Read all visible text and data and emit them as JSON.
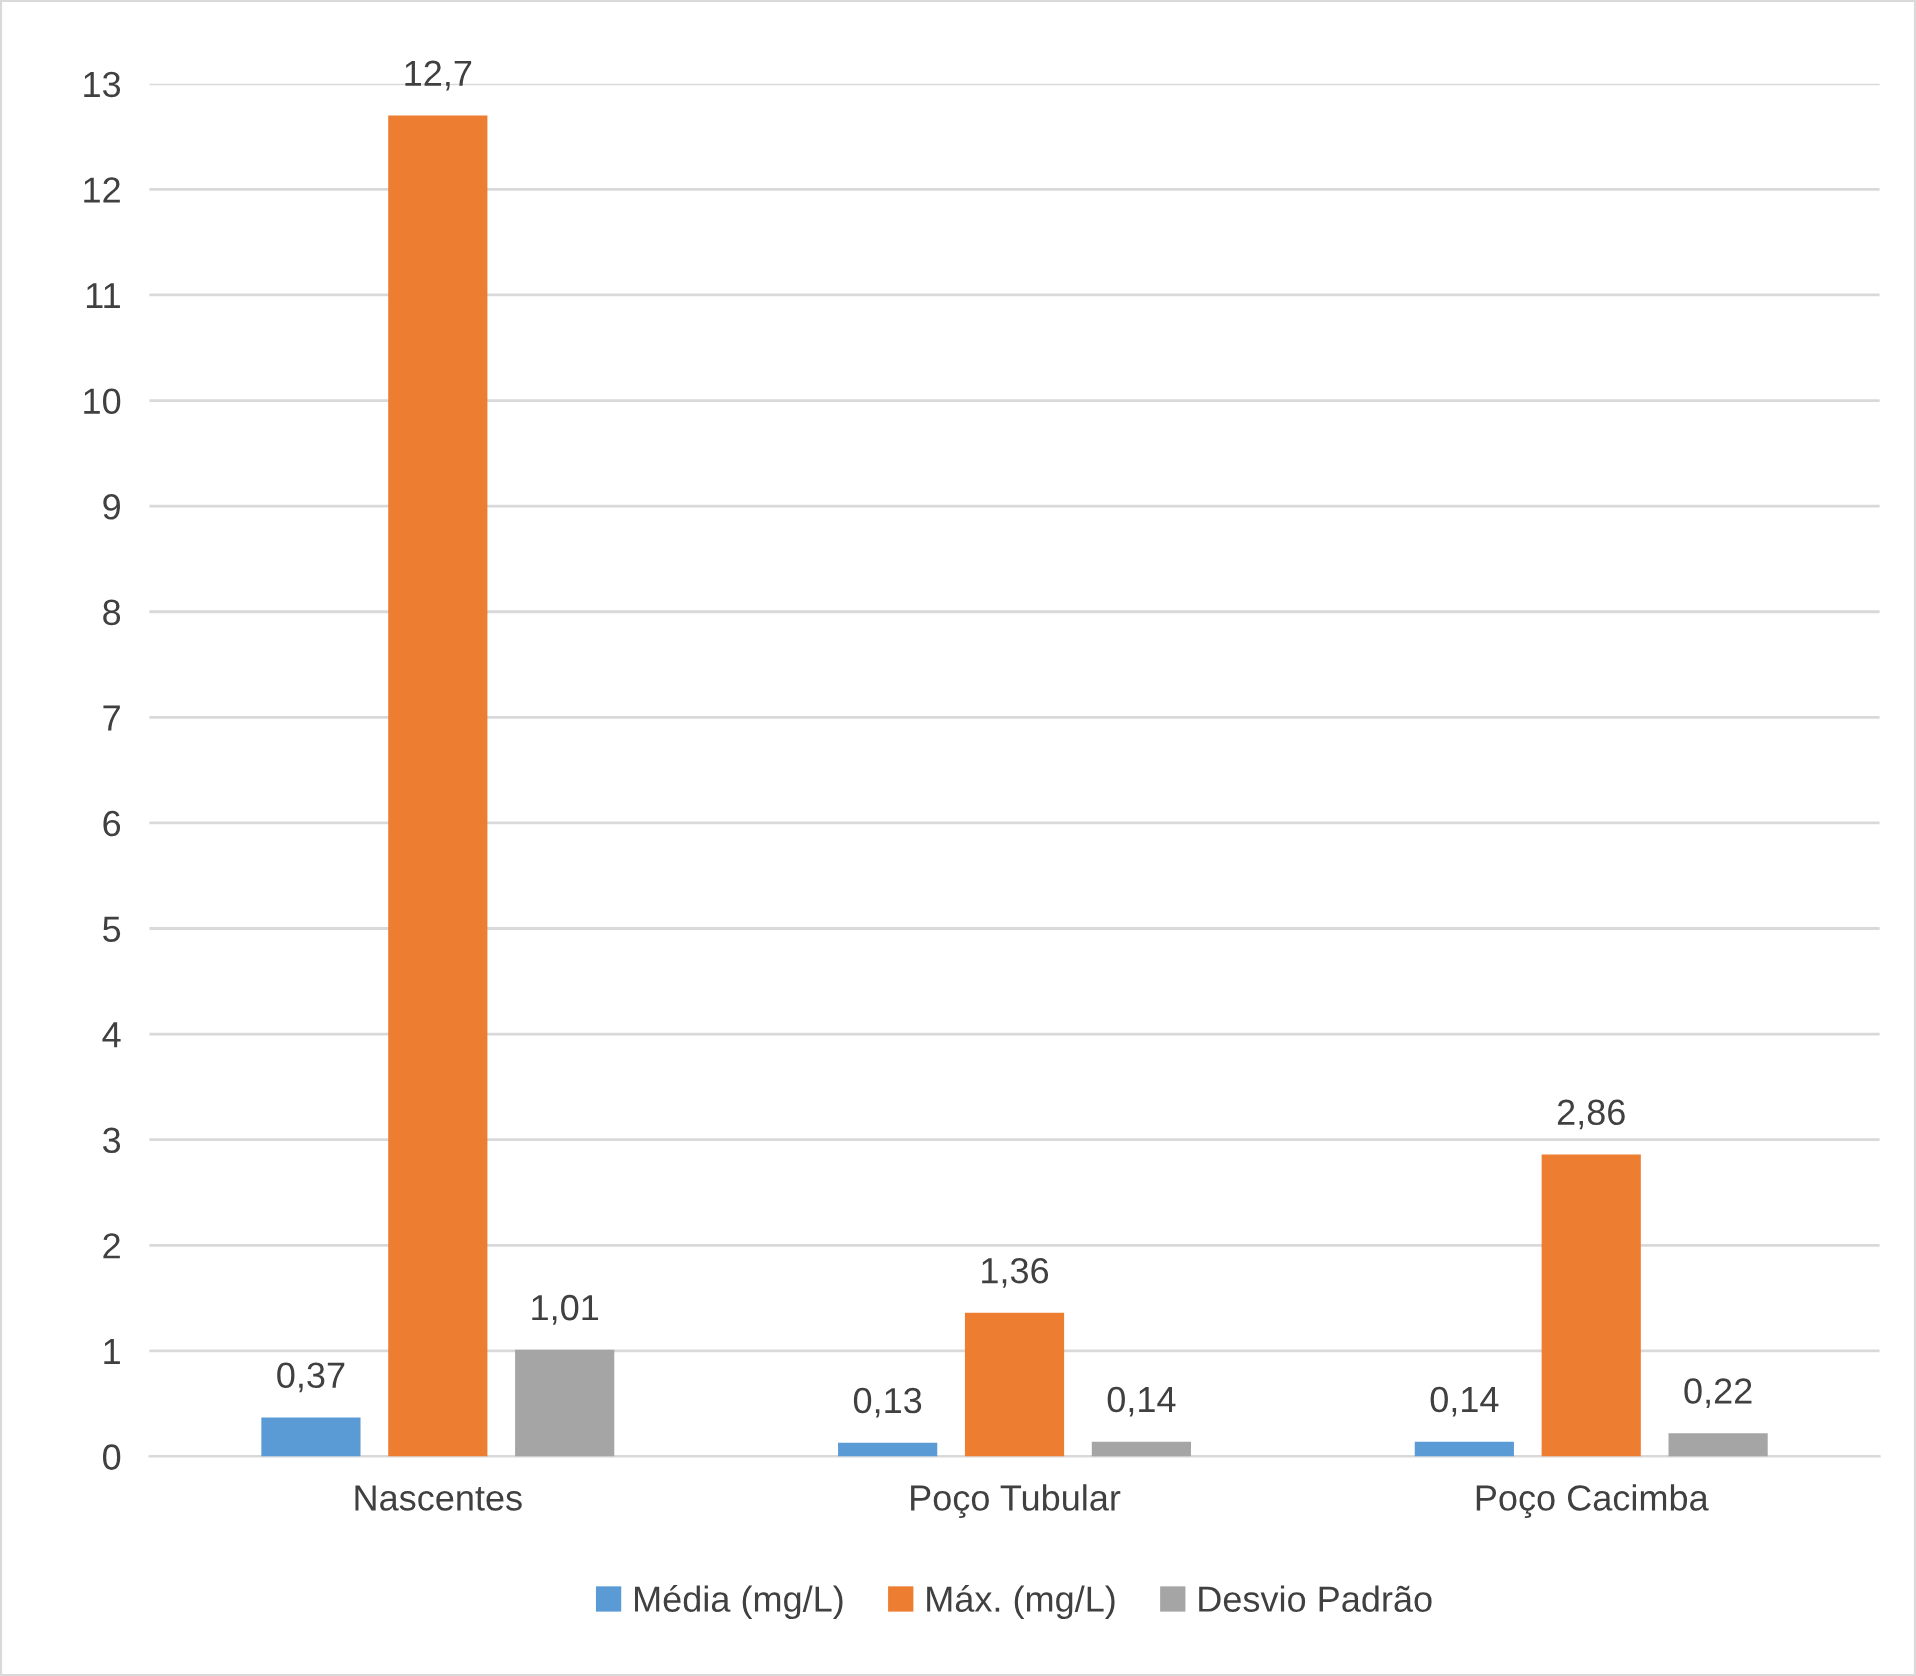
{
  "chart_data": {
    "type": "bar",
    "categories": [
      "Nascentes",
      "Poço Tubular",
      "Poço Cacimba"
    ],
    "series": [
      {
        "name": "Média (mg/L)",
        "color": "#5b9bd5",
        "values": [
          0.37,
          0.13,
          0.14
        ],
        "value_labels": [
          "0,37",
          "0,13",
          "0,14"
        ]
      },
      {
        "name": "Máx. (mg/L)",
        "color": "#ed7d31",
        "values": [
          12.7,
          1.36,
          2.86
        ],
        "value_labels": [
          "12,7",
          "1,36",
          "2,86"
        ]
      },
      {
        "name": "Desvio Padrão",
        "color": "#a5a5a5",
        "values": [
          1.01,
          0.14,
          0.22
        ],
        "value_labels": [
          "1,01",
          "0,14",
          "0,22"
        ]
      }
    ],
    "ylim": [
      0,
      13
    ],
    "yticks": [
      0,
      1,
      2,
      3,
      4,
      5,
      6,
      7,
      8,
      9,
      10,
      11,
      12,
      13
    ],
    "grid": "y",
    "legend": "bottom"
  }
}
